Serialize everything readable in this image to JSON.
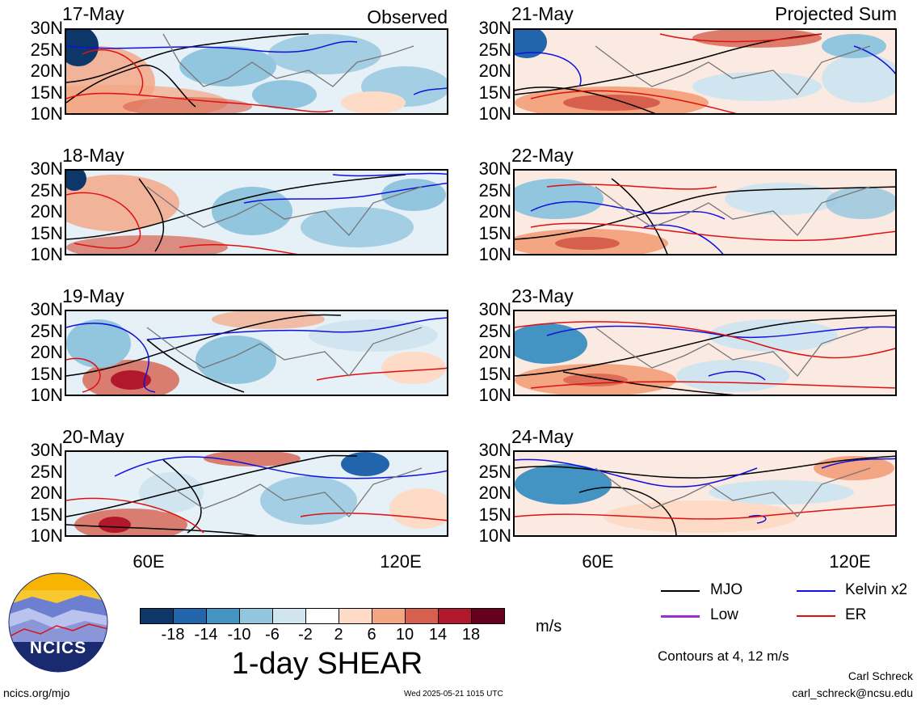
{
  "panels": {
    "left": [
      {
        "date": "17-May",
        "tag": "Observed"
      },
      {
        "date": "18-May",
        "tag": ""
      },
      {
        "date": "19-May",
        "tag": ""
      },
      {
        "date": "20-May",
        "tag": ""
      }
    ],
    "right": [
      {
        "date": "21-May",
        "tag": "Projected Sum"
      },
      {
        "date": "22-May",
        "tag": ""
      },
      {
        "date": "23-May",
        "tag": ""
      },
      {
        "date": "24-May",
        "tag": ""
      }
    ]
  },
  "lat_labels": [
    "30N",
    "25N",
    "20N",
    "15N",
    "10N"
  ],
  "lon_labels": [
    "60E",
    "120E"
  ],
  "colorbar": {
    "ticks": [
      "-18",
      "-14",
      "-10",
      "-6",
      "-2",
      "2",
      "6",
      "10",
      "14",
      "18"
    ],
    "colors": [
      "#0d3768",
      "#2265ad",
      "#4393c3",
      "#92c5de",
      "#d1e5f0",
      "#ffffff",
      "#fddbc7",
      "#f4a582",
      "#d6604d",
      "#b2182b",
      "#67001f"
    ],
    "units": "m/s",
    "title": "1-day SHEAR"
  },
  "legend": {
    "mjo": "MJO",
    "kelvin": "Kelvin x2",
    "low": "Low",
    "er": "ER",
    "contours_note": "Contours at 4, 12 m/s",
    "colors": {
      "mjo": "#000000",
      "kelvin": "#1010e0",
      "low": "#9a30d0",
      "er": "#e01010"
    }
  },
  "footer": {
    "url": "ncics.org/mjo",
    "timestamp": "Wed 2025-05-21 1015 UTC",
    "author": "Carl Schreck",
    "email": "carl_schreck@ncsu.edu"
  },
  "logo": {
    "text": "NCICS"
  }
}
